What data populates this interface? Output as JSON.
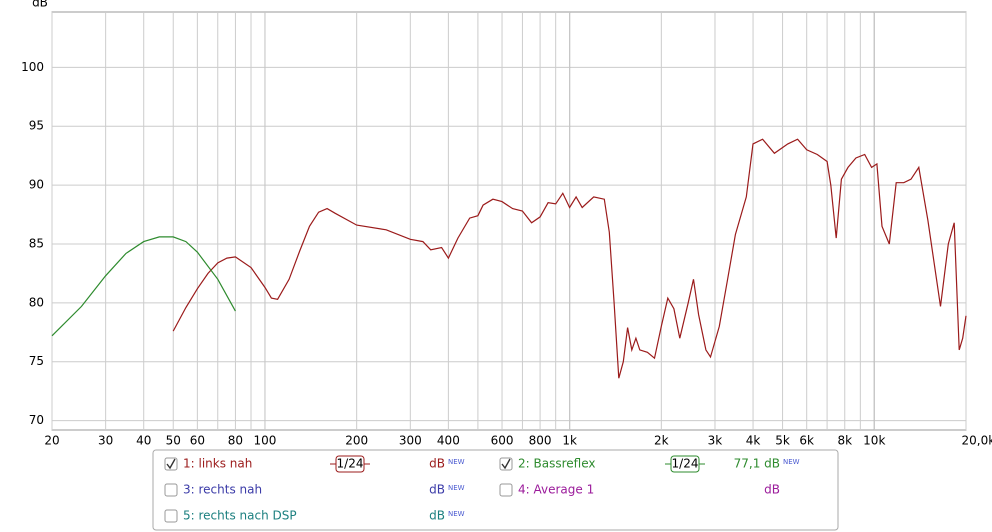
{
  "chart_data": {
    "type": "line",
    "y_label": "dB",
    "xscale": "log",
    "xlim": [
      20,
      20000
    ],
    "ylim": [
      69.2,
      104.7
    ],
    "xticks": [
      20,
      30,
      40,
      50,
      60,
      80,
      100,
      200,
      300,
      400,
      600,
      800,
      {
        "value": 1000,
        "label": "1k"
      },
      {
        "value": 2000,
        "label": "2k"
      },
      {
        "value": 3000,
        "label": "3k"
      },
      {
        "value": 4000,
        "label": "4k"
      },
      {
        "value": 5000,
        "label": "5k"
      },
      {
        "value": 6000,
        "label": "6k"
      },
      {
        "value": 8000,
        "label": "8k"
      },
      {
        "value": 10000,
        "label": "10k"
      },
      {
        "value": 20000,
        "label": "20,0kHz"
      }
    ],
    "x_minor_grid": [
      70,
      90,
      500,
      700,
      900,
      7000,
      9000
    ],
    "x_major_grid": [
      100,
      1000,
      10000
    ],
    "yticks": [
      70,
      75,
      80,
      85,
      90,
      95,
      100
    ],
    "grid": true,
    "series": [
      {
        "name": "1: links nah",
        "color": "#9b1b1b",
        "checked": true,
        "smoothing": "1/24",
        "level": "dB",
        "tag": "NEW",
        "x": [
          50,
          55,
          60,
          65,
          70,
          75,
          80,
          90,
          100,
          105,
          110,
          120,
          130,
          140,
          150,
          160,
          170,
          200,
          250,
          300,
          330,
          350,
          380,
          400,
          430,
          470,
          500,
          520,
          560,
          600,
          650,
          700,
          750,
          800,
          850,
          900,
          950,
          1000,
          1050,
          1100,
          1200,
          1300,
          1350,
          1400,
          1450,
          1500,
          1550,
          1600,
          1650,
          1700,
          1800,
          1900,
          2000,
          2100,
          2200,
          2300,
          2450,
          2550,
          2650,
          2800,
          2900,
          3100,
          3300,
          3500,
          3800,
          4000,
          4300,
          4700,
          5200,
          5600,
          6000,
          6500,
          7000,
          7200,
          7500,
          7800,
          8200,
          8700,
          9300,
          9800,
          10200,
          10600,
          11200,
          11800,
          12500,
          13200,
          14000,
          15000,
          16500,
          17500,
          18300,
          19000,
          19500,
          20000
        ],
        "values": [
          77.6,
          79.6,
          81.2,
          82.5,
          83.4,
          83.8,
          83.9,
          83.0,
          81.3,
          80.4,
          80.3,
          82.0,
          84.4,
          86.5,
          87.7,
          88.0,
          87.6,
          86.6,
          86.2,
          85.4,
          85.2,
          84.5,
          84.7,
          83.8,
          85.5,
          87.2,
          87.4,
          88.3,
          88.8,
          88.6,
          88.0,
          87.8,
          86.8,
          87.3,
          88.5,
          88.4,
          89.3,
          88.1,
          89.0,
          88.1,
          89.0,
          88.8,
          86.0,
          80.0,
          73.6,
          75.0,
          77.9,
          76.0,
          77.0,
          76.0,
          75.8,
          75.3,
          78.0,
          80.4,
          79.5,
          77.0,
          80.0,
          82.0,
          79.0,
          76.0,
          75.4,
          78.0,
          82.0,
          85.8,
          89.0,
          93.5,
          93.9,
          92.7,
          93.5,
          93.9,
          93.0,
          92.6,
          92.0,
          90.0,
          85.5,
          90.5,
          91.5,
          92.3,
          92.6,
          91.5,
          91.8,
          86.5,
          85.0,
          90.2,
          90.2,
          90.5,
          91.5,
          87.0,
          79.7,
          85.0,
          86.8,
          76.0,
          77.0,
          78.9
        ]
      },
      {
        "name": "2: Bassreflex",
        "color": "#2e8b2e",
        "checked": true,
        "smoothing": "1/24",
        "level": "77,1 dB",
        "tag": "NEW",
        "x": [
          20,
          25,
          30,
          35,
          40,
          45,
          50,
          55,
          60,
          70,
          80
        ],
        "values": [
          77.2,
          79.7,
          82.3,
          84.2,
          85.2,
          85.6,
          85.6,
          85.2,
          84.3,
          82.0,
          79.3
        ]
      }
    ],
    "other_measurements": [
      {
        "name": "3: rechts nah",
        "color": "#3b3ba8",
        "checked": false,
        "level": "dB",
        "tag": "NEW"
      },
      {
        "name": "4: Average 1",
        "color": "#9b1b9b",
        "checked": false,
        "level": "dB"
      },
      {
        "name": "5: rechts nach DSP",
        "color": "#1b7f7f",
        "checked": false,
        "level": "dB",
        "tag": "NEW"
      }
    ]
  }
}
